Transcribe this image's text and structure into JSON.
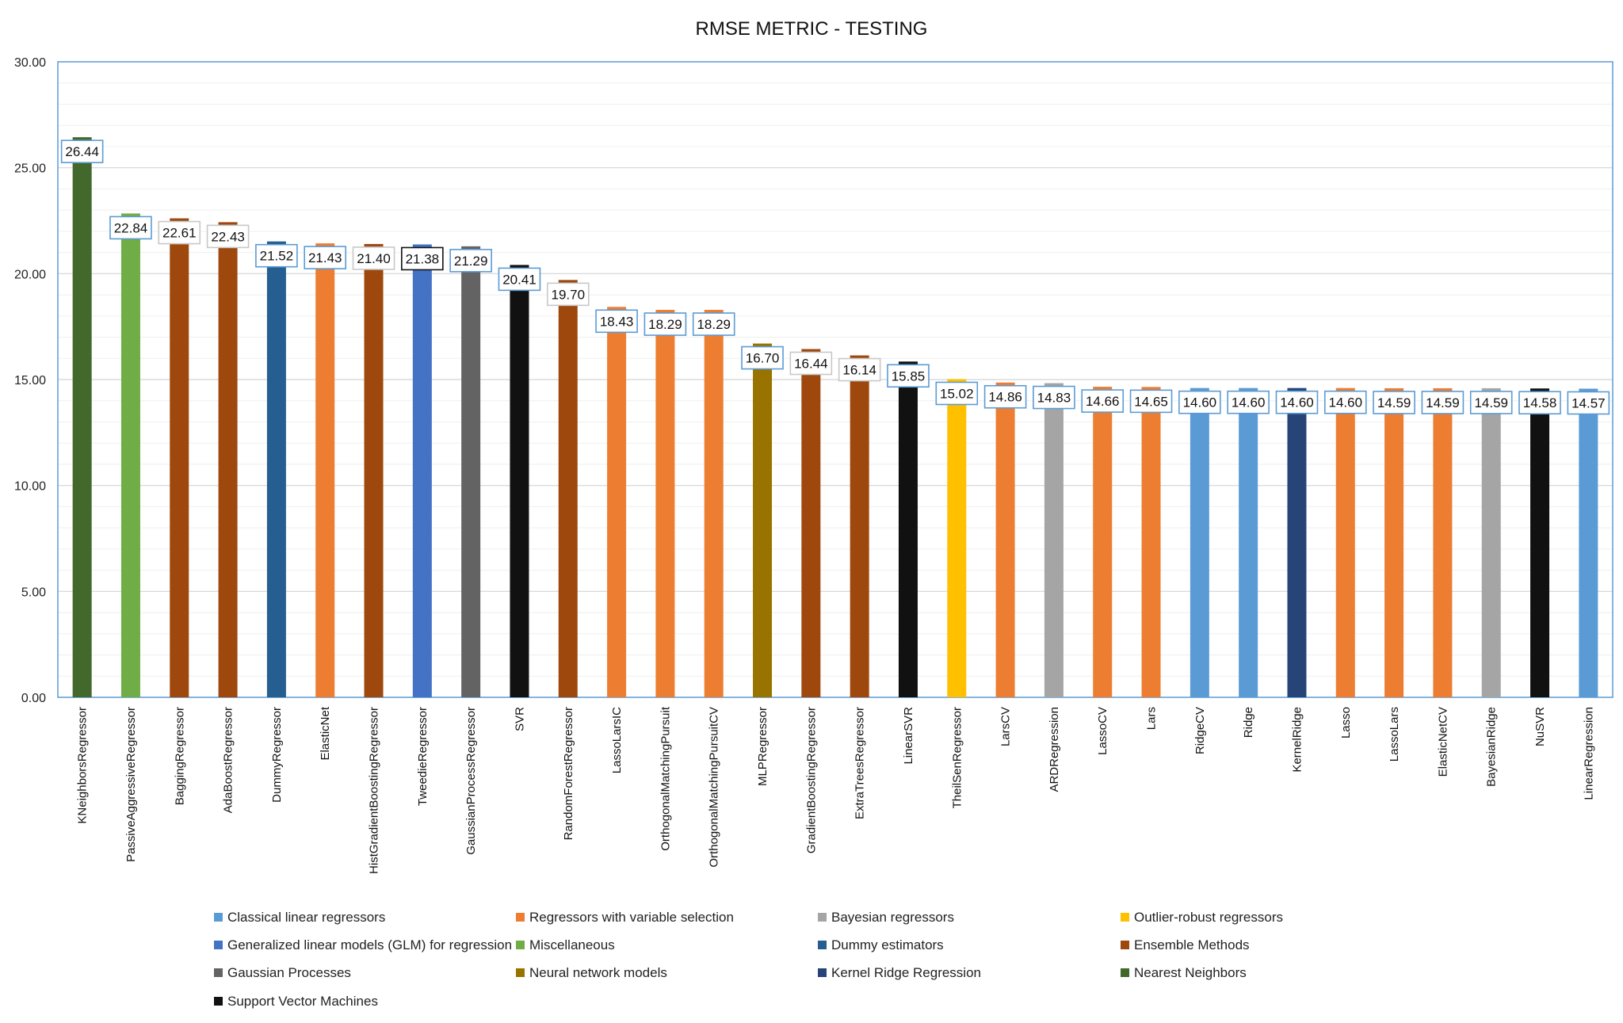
{
  "chart_data": {
    "type": "bar",
    "title": "RMSE METRIC - TESTING",
    "xlabel": "",
    "ylabel": "",
    "ylim": [
      0,
      30
    ],
    "yticks": [
      "0.00",
      "5.00",
      "10.00",
      "15.00",
      "20.00",
      "25.00",
      "30.00"
    ],
    "grid": true,
    "legend_position": "bottom",
    "categories": [
      "KNeighborsRegressor",
      "PassiveAggressiveRegressor",
      "BaggingRegressor",
      "AdaBoostRegressor",
      "DummyRegressor",
      "ElasticNet",
      "HistGradientBoostingRegressor",
      "TweedieRegressor",
      "GaussianProcessRegressor",
      "SVR",
      "RandomForestRegressor",
      "LassoLarsIC",
      "OrthogonalMatchingPursuit",
      "OrthogonalMatchingPursuitCV",
      "MLPRegressor",
      "GradientBoostingRegressor",
      "ExtraTreesRegressor",
      "LinearSVR",
      "TheilSenRegressor",
      "LarsCV",
      "ARDRegression",
      "LassoCV",
      "Lars",
      "RidgeCV",
      "Ridge",
      "KernelRidge",
      "Lasso",
      "LassoLars",
      "ElasticNetCV",
      "BayesianRidge",
      "NuSVR",
      "LinearRegression"
    ],
    "values": [
      26.44,
      22.84,
      22.61,
      22.43,
      21.52,
      21.43,
      21.4,
      21.38,
      21.29,
      20.41,
      19.7,
      18.43,
      18.29,
      18.29,
      16.7,
      16.44,
      16.14,
      15.85,
      15.02,
      14.86,
      14.83,
      14.66,
      14.65,
      14.6,
      14.6,
      14.6,
      14.6,
      14.59,
      14.59,
      14.59,
      14.58,
      14.57
    ],
    "data_labels": [
      "26.44",
      "22.84",
      "22.61",
      "22.43",
      "21.52",
      "21.43",
      "21.40",
      "21.38",
      "21.29",
      "20.41",
      "19.70",
      "18.43",
      "18.29",
      "18.29",
      "16.70",
      "16.44",
      "16.14",
      "15.85",
      "15.02",
      "14.86",
      "14.83",
      "14.66",
      "14.65",
      "14.60",
      "14.60",
      "14.60",
      "14.60",
      "14.59",
      "14.59",
      "14.59",
      "14.58",
      "14.57"
    ],
    "groups": [
      "Nearest Neighbors",
      "Miscellaneous",
      "Ensemble Methods",
      "Ensemble Methods",
      "Dummy estimators",
      "Regressors with variable selection",
      "Ensemble Methods",
      "Generalized linear models (GLM) for regression",
      "Gaussian Processes",
      "Support Vector Machines",
      "Ensemble Methods",
      "Regressors with variable selection",
      "Regressors with variable selection",
      "Regressors with variable selection",
      "Neural network models",
      "Ensemble Methods",
      "Ensemble Methods",
      "Support Vector Machines",
      "Outlier-robust regressors",
      "Regressors with variable selection",
      "Bayesian regressors",
      "Regressors with variable selection",
      "Regressors with variable selection",
      "Classical linear regressors",
      "Classical linear regressors",
      "Kernel Ridge Regression",
      "Regressors with variable selection",
      "Regressors with variable selection",
      "Regressors with variable selection",
      "Bayesian regressors",
      "Support Vector Machines",
      "Classical linear regressors"
    ],
    "label_box_colors": [
      "#5b9bd5",
      "#5b9bd5",
      "#c8c8c8",
      "#c8c8c8",
      "#5b9bd5",
      "#5b9bd5",
      "#c8c8c8",
      "#111111",
      "#5b9bd5",
      "#5b9bd5",
      "#c8c8c8",
      "#5b9bd5",
      "#5b9bd5",
      "#5b9bd5",
      "#5b9bd5",
      "#c8c8c8",
      "#c8c8c8",
      "#5b9bd5",
      "#5b9bd5",
      "#5b9bd5",
      "#5b9bd5",
      "#5b9bd5",
      "#5b9bd5",
      "#5b9bd5",
      "#5b9bd5",
      "#5b9bd5",
      "#5b9bd5",
      "#5b9bd5",
      "#5b9bd5",
      "#5b9bd5",
      "#5b9bd5",
      "#5b9bd5"
    ],
    "legend": [
      {
        "name": "Classical linear regressors",
        "color": "#5b9bd5"
      },
      {
        "name": "Regressors with variable selection",
        "color": "#ed7d31"
      },
      {
        "name": "Bayesian regressors",
        "color": "#a5a5a5"
      },
      {
        "name": "Outlier-robust regressors",
        "color": "#ffc000"
      },
      {
        "name": "Generalized linear models (GLM) for regression",
        "color": "#4472c4"
      },
      {
        "name": "Miscellaneous",
        "color": "#70ad47"
      },
      {
        "name": "Dummy estimators",
        "color": "#255e91"
      },
      {
        "name": "Ensemble Methods",
        "color": "#9e480e"
      },
      {
        "name": "Gaussian Processes",
        "color": "#636363"
      },
      {
        "name": "Neural network models",
        "color": "#997300"
      },
      {
        "name": "Kernel Ridge Regression",
        "color": "#264478"
      },
      {
        "name": "Nearest Neighbors",
        "color": "#43682b"
      },
      {
        "name": "Support Vector Machines",
        "color": "#111111"
      }
    ]
  }
}
